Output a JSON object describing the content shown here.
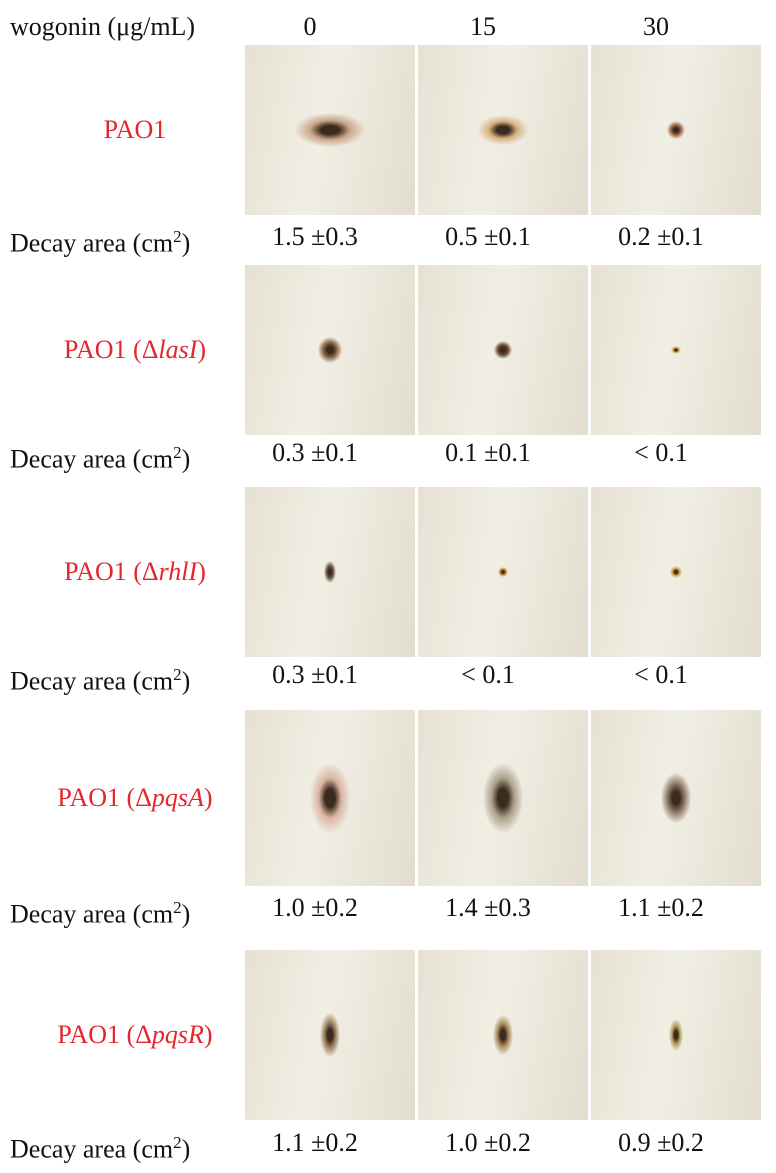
{
  "header": {
    "label": "wogonin (μg/mL)",
    "columns": [
      "0",
      "15",
      "30"
    ]
  },
  "decay_label": {
    "text": "Decay area (cm",
    "superscript": "2",
    "close": ")"
  },
  "rows": [
    {
      "strain": {
        "prefix": "PAO1"
      },
      "values": [
        "1.5 ±0.3",
        "0.5 ±0.1",
        "0.2 ±0.1"
      ]
    },
    {
      "strain": {
        "prefix": "PAO1 (Δ",
        "gene": "lasI",
        "suffix": ")"
      },
      "values": [
        "0.3 ±0.1",
        "0.1 ±0.1",
        "< 0.1"
      ]
    },
    {
      "strain": {
        "prefix": "PAO1 (Δ",
        "gene": "rhlI",
        "suffix": ")"
      },
      "values": [
        "0.3 ±0.1",
        "< 0.1",
        "< 0.1"
      ]
    },
    {
      "strain": {
        "prefix": "PAO1 (Δ",
        "gene": "pqsA",
        "suffix": ")"
      },
      "values": [
        "1.0 ±0.2",
        "1.4 ±0.3",
        "1.1 ±0.2"
      ]
    },
    {
      "strain": {
        "prefix": "PAO1 (Δ",
        "gene": "pqsR",
        "suffix": ")"
      },
      "values": [
        "1.1 ±0.2",
        "1.0 ±0.2",
        "0.9 ±0.2"
      ]
    }
  ]
}
